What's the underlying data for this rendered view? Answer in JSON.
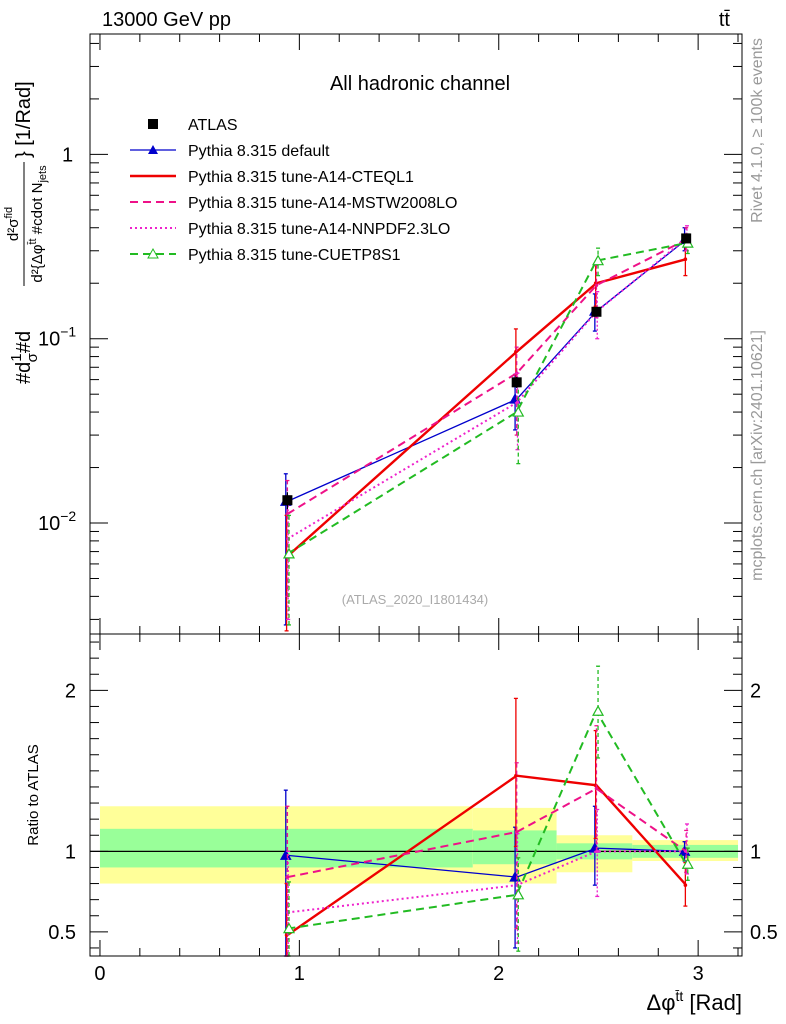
{
  "header": {
    "energy_label": "13000 GeV pp",
    "process_label": "tt̄"
  },
  "side": {
    "rivet_label": "Rivet 4.1.0, ≥ 100k events",
    "mcplots_label": "mcplots.cern.ch [arXiv:2401.10621]"
  },
  "chart_data": [
    {
      "type": "scatter",
      "panel": "main",
      "title": "All hadronic channel",
      "analysis_label": "(ATLAS_2020_I1801434)",
      "ylabel_parts": {
        "frac": "#d",
        "num": "1",
        "den": "σ",
        "hash": "#d",
        "dsig_num": "d²σ",
        "dsig_sup": "fid",
        "dsig_den": "d²{Δφ",
        "dsig_den_sup": "t̄t",
        "dsig_den_rest": " #cdot N",
        "dsig_den_sub": "jets",
        "unit": "} [1/Rad]"
      },
      "yscale": "log",
      "ylim": [
        0.0025,
        4.5
      ],
      "xlim": [
        -0.05,
        3.22
      ],
      "yticks": [
        {
          "value": 0.01,
          "base": "10",
          "exp": "−2"
        },
        {
          "value": 0.1,
          "base": "10",
          "exp": "−1"
        },
        {
          "value": 1,
          "base": "1",
          "exp": ""
        }
      ],
      "legend": {
        "position": "top-left"
      },
      "data": {
        "name": "ATLAS",
        "x": [
          0.94,
          2.09,
          2.49,
          2.94
        ],
        "y": [
          0.0133,
          0.058,
          0.14,
          0.35
        ],
        "yerr": [
          0.0014,
          0.004,
          0.008,
          0.018
        ]
      },
      "series": [
        {
          "name": "Pythia 8.315 default",
          "color": "#0000cc",
          "dash": "solid",
          "marker": "triangle-filled",
          "x": [
            0.94,
            2.09,
            2.49,
            2.94
          ],
          "y": [
            0.0131,
            0.047,
            0.141,
            0.345
          ],
          "ylo": [
            0.0028,
            0.032,
            0.11,
            0.3
          ],
          "yhi": [
            0.0185,
            0.064,
            0.175,
            0.4
          ]
        },
        {
          "name": "Pythia 8.315 tune-A14-CTEQL1",
          "color": "#ee0000",
          "dash": "solid",
          "marker": "none",
          "x": [
            0.94,
            2.09,
            2.49,
            2.94
          ],
          "y": [
            0.0066,
            0.085,
            0.2,
            0.27
          ],
          "ylo": [
            0.0026,
            0.06,
            0.15,
            0.22
          ],
          "yhi": [
            0.011,
            0.113,
            0.25,
            0.32
          ]
        },
        {
          "name": "Pythia 8.315 tune-A14-MSTW2008LO",
          "color": "#ee1188",
          "dash": "dashed",
          "marker": "none",
          "x": [
            0.94,
            2.09,
            2.49,
            2.94
          ],
          "y": [
            0.0112,
            0.065,
            0.195,
            0.345
          ],
          "ylo": [
            0.004,
            0.03,
            0.13,
            0.3
          ],
          "yhi": [
            0.017,
            0.09,
            0.25,
            0.4
          ]
        },
        {
          "name": "Pythia 8.315 tune-A14-NNPDF2.3LO",
          "color": "#ee22cc",
          "dash": "dotted",
          "marker": "none",
          "x": [
            0.94,
            2.09,
            2.49,
            2.94
          ],
          "y": [
            0.0082,
            0.045,
            0.14,
            0.35
          ],
          "ylo": [
            0.003,
            0.025,
            0.1,
            0.3
          ],
          "yhi": [
            0.014,
            0.065,
            0.18,
            0.41
          ]
        },
        {
          "name": "Pythia 8.315 tune-CUETP8S1",
          "color": "#22bb22",
          "dash": "dashed",
          "marker": "triangle-open",
          "x": [
            0.94,
            2.09,
            2.49,
            2.94
          ],
          "y": [
            0.0068,
            0.04,
            0.265,
            0.33
          ],
          "ylo": [
            0.0028,
            0.021,
            0.22,
            0.29
          ],
          "yhi": [
            0.011,
            0.055,
            0.31,
            0.37
          ]
        }
      ]
    },
    {
      "type": "scatter",
      "panel": "ratio",
      "ylabel": "Ratio to ATLAS",
      "xlabel_parts": {
        "base": "Δφ",
        "sup": "t̄t",
        "unit": " [Rad]"
      },
      "ylim": [
        0.35,
        2.35
      ],
      "xlim": [
        -0.05,
        3.22
      ],
      "yticks": [
        0.5,
        1,
        2
      ],
      "xticks": [
        0,
        1,
        2,
        3
      ],
      "reference_line": 1,
      "bands": [
        {
          "x0": 0.0,
          "x1": 1.87,
          "y0_outer": 0.8,
          "y1_outer": 1.28,
          "y0_inner": 0.9,
          "y1_inner": 1.14
        },
        {
          "x0": 1.87,
          "x1": 2.29,
          "y0_outer": 0.8,
          "y1_outer": 1.27,
          "y0_inner": 0.92,
          "y1_inner": 1.13
        },
        {
          "x0": 2.29,
          "x1": 2.67,
          "y0_outer": 0.87,
          "y1_outer": 1.1,
          "y0_inner": 0.95,
          "y1_inner": 1.05
        },
        {
          "x0": 2.67,
          "x1": 3.2,
          "y0_outer": 0.94,
          "y1_outer": 1.07,
          "y0_inner": 0.96,
          "y1_inner": 1.04
        }
      ],
      "series": [
        {
          "name": "Pythia 8.315 default",
          "color": "#0000cc",
          "dash": "solid",
          "marker": "triangle-filled",
          "x": [
            0.94,
            2.09,
            2.49,
            2.94
          ],
          "y": [
            0.975,
            0.84,
            1.02,
            1.0
          ],
          "ylo": [
            0.35,
            0.4,
            0.79,
            0.94
          ],
          "yhi": [
            1.38,
            1.15,
            1.28,
            1.06
          ]
        },
        {
          "name": "Pythia 8.315 tune-A14-CTEQL1",
          "color": "#ee0000",
          "dash": "solid",
          "marker": "none",
          "x": [
            0.94,
            2.09,
            2.49,
            2.94
          ],
          "y": [
            0.48,
            1.47,
            1.41,
            0.79
          ],
          "ylo": [
            0.35,
            1.03,
            1.08,
            0.66
          ],
          "yhi": [
            0.8,
            1.95,
            1.75,
            0.93
          ]
        },
        {
          "name": "Pythia 8.315 tune-A14-MSTW2008LO",
          "color": "#ee1188",
          "dash": "dashed",
          "marker": "none",
          "x": [
            0.94,
            2.09,
            2.49,
            2.94
          ],
          "y": [
            0.84,
            1.12,
            1.39,
            1.0
          ],
          "ylo": [
            0.35,
            0.52,
            1.0,
            0.87
          ],
          "yhi": [
            1.28,
            1.55,
            1.78,
            1.13
          ]
        },
        {
          "name": "Pythia 8.315 tune-A14-NNPDF2.3LO",
          "color": "#ee22cc",
          "dash": "dotted",
          "marker": "none",
          "x": [
            0.94,
            2.09,
            2.49,
            2.94
          ],
          "y": [
            0.62,
            0.79,
            1.0,
            1.0
          ],
          "ylo": [
            0.35,
            0.43,
            0.72,
            0.86
          ],
          "yhi": [
            1.0,
            1.11,
            1.26,
            1.17
          ]
        },
        {
          "name": "Pythia 8.315 tune-CUETP8S1",
          "color": "#22bb22",
          "dash": "dashed",
          "marker": "triangle-open",
          "x": [
            0.94,
            2.09,
            2.49,
            2.94
          ],
          "y": [
            0.52,
            0.73,
            1.87,
            0.92
          ],
          "ylo": [
            0.35,
            0.38,
            1.58,
            0.82
          ],
          "yhi": [
            0.81,
            0.96,
            2.15,
            1.02
          ]
        }
      ]
    }
  ]
}
